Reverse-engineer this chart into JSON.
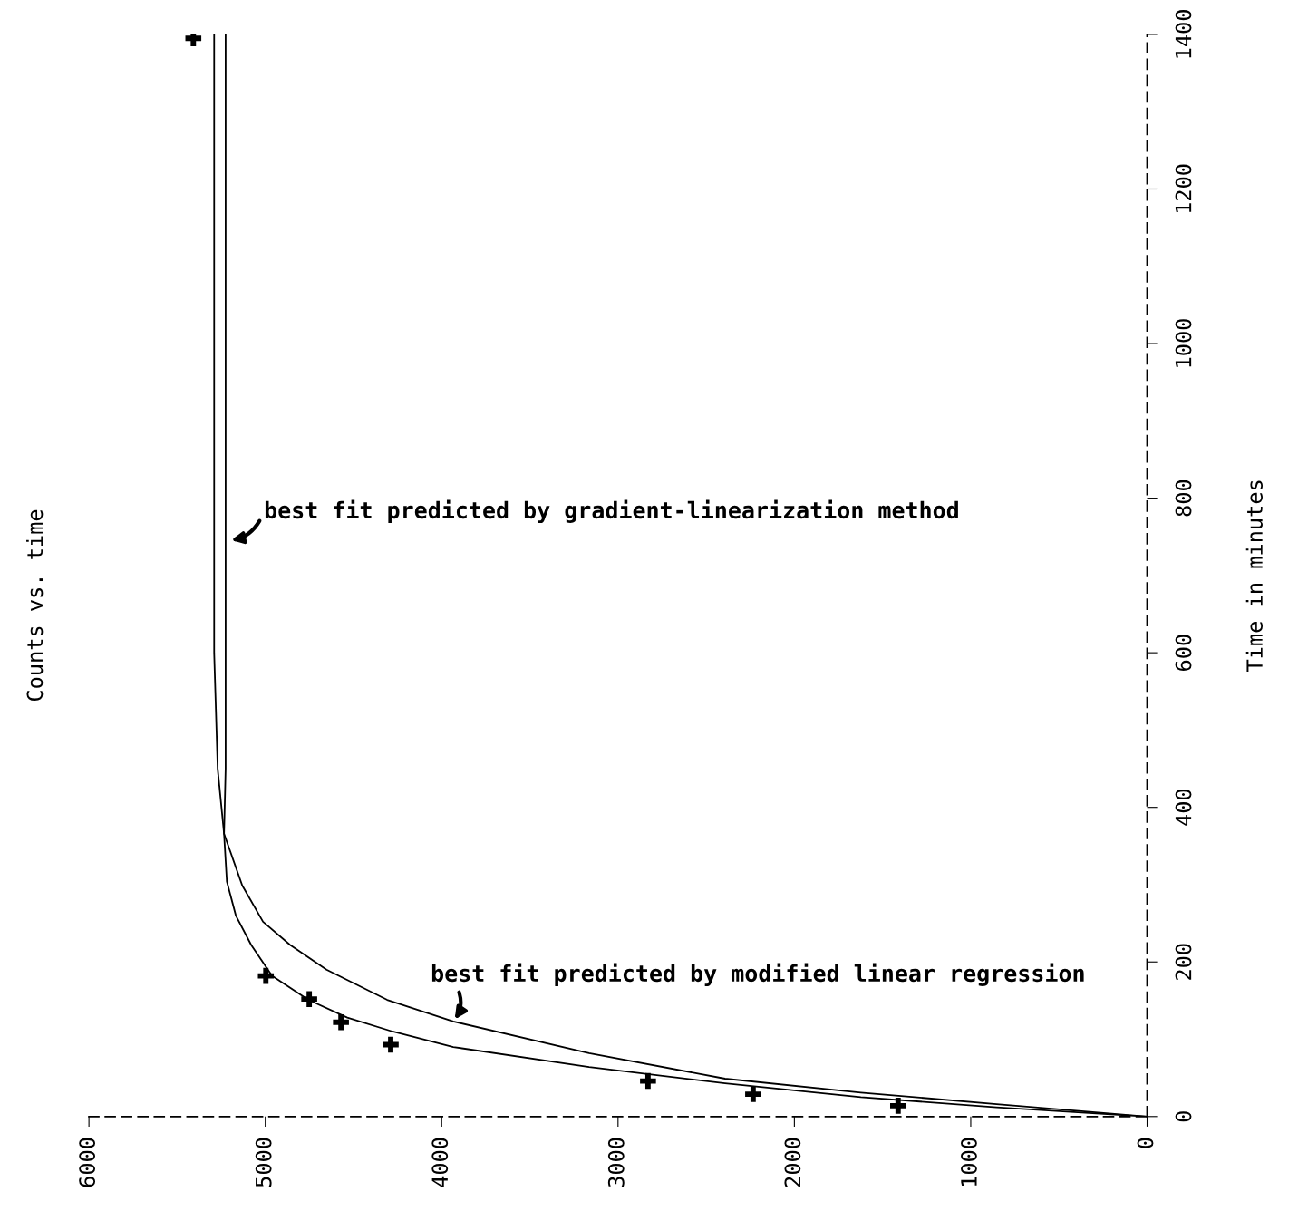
{
  "chart_data": {
    "type": "scatter",
    "title": "Counts vs. time",
    "ylabel": "Time in minutes",
    "xlim": [
      6000,
      0
    ],
    "xticks": [
      6000,
      5000,
      4000,
      3000,
      2000,
      1000,
      0
    ],
    "ylim": [
      0,
      1400
    ],
    "yticks": [
      0,
      200,
      400,
      600,
      800,
      1000,
      1200,
      1400
    ],
    "grid": false,
    "series": [
      {
        "marker": "cross",
        "color": "#000000",
        "x": [
          5408,
          4997,
          4751,
          4571,
          4289,
          2830,
          2234,
          1412
        ],
        "values": [
          1395,
          182,
          152,
          122,
          93,
          46,
          29,
          14
        ]
      },
      {
        "type": "line",
        "color": "#000000",
        "line_style": "solid",
        "x": [
          0,
          853,
          1623,
          2393,
          3164,
          3934,
          4278,
          4535,
          4756,
          4962,
          5080,
          5167,
          5218,
          5234,
          5225,
          5225
        ],
        "values": [
          0,
          12,
          25,
          43,
          64,
          90,
          110,
          128,
          151,
          182,
          222,
          260,
          304,
          366,
          450,
          1400
        ]
      },
      {
        "type": "line",
        "color": "#000000",
        "line_style": "solid",
        "x": [
          0,
          853,
          1623,
          2393,
          3164,
          3934,
          4309,
          4653,
          4859,
          5013,
          5131,
          5234,
          5270,
          5290,
          5290
        ],
        "values": [
          0,
          16,
          31,
          49,
          82,
          123,
          151,
          190,
          222,
          252,
          299,
          366,
          450,
          600,
          1400
        ]
      }
    ],
    "annotations": [
      {
        "text": "best fit predicted by gradient-linearization method",
        "x": 5208,
        "y": 745
      },
      {
        "text": "best fit predicted by modified linear regression",
        "x": 3934,
        "y": 123
      }
    ]
  }
}
